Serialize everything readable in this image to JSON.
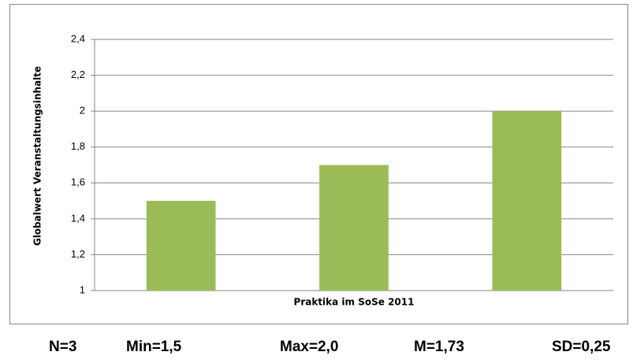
{
  "chart_data": {
    "type": "bar",
    "y_label": "Globalwert Veranstaltungsinhalte",
    "x_label": "Praktika im SoSe 2011",
    "categories": [
      null,
      null,
      null
    ],
    "values": [
      1.5,
      1.7,
      2.0
    ],
    "color": "#9bbb59",
    "ylim": [
      1,
      2.4
    ],
    "yticks": [
      1,
      {
        "value": 1.2,
        "label": "1,2"
      },
      {
        "value": 1.4,
        "label": "1,4"
      },
      {
        "value": 1.6,
        "label": "1,6"
      },
      {
        "value": 1.8,
        "label": "1,8"
      },
      2,
      {
        "value": 2.2,
        "label": "2,2"
      },
      {
        "value": 2.4,
        "label": "2,4"
      }
    ],
    "grid": true
  },
  "stats": [
    "N=3",
    "Min=1,5",
    "Max=2,0",
    "M=1,73",
    "SD=0,25"
  ]
}
